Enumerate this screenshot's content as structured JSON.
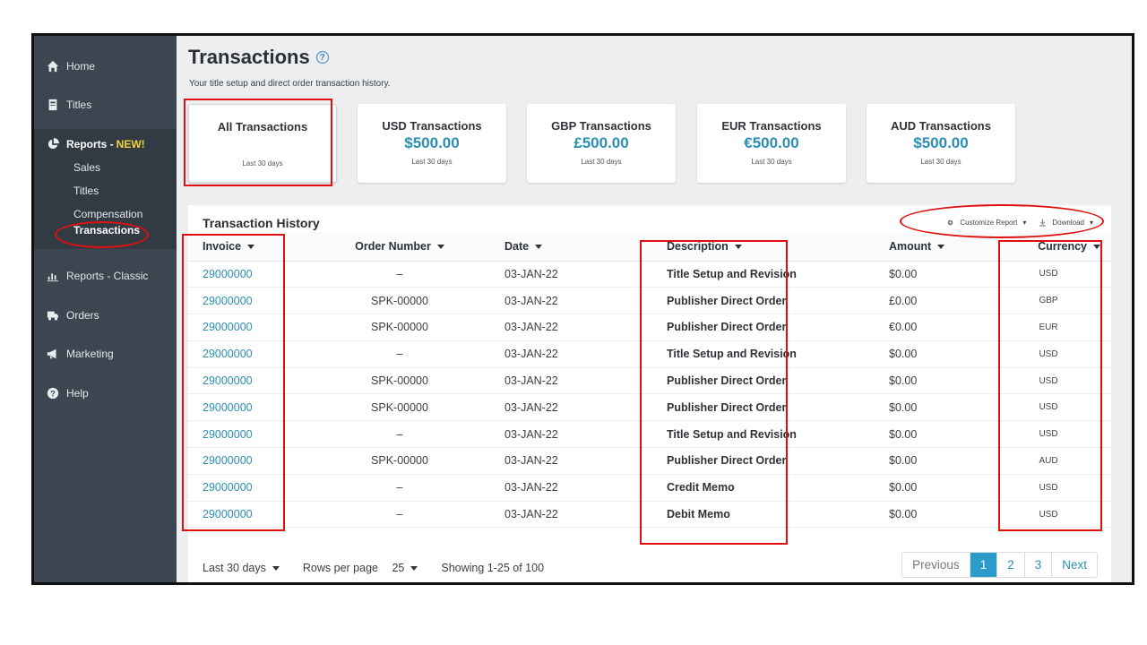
{
  "sidebar": {
    "home": "Home",
    "titles": "Titles",
    "reports_new": "Reports -",
    "new_badge": "NEW!",
    "sub_items": [
      "Sales",
      "Titles",
      "Compensation",
      "Transactions"
    ],
    "reports_classic": "Reports - Classic",
    "orders": "Orders",
    "marketing": "Marketing",
    "help": "Help"
  },
  "header": {
    "title": "Transactions",
    "help_icon": "?",
    "subtitle": "Your title setup and direct order transaction history."
  },
  "cards": [
    {
      "title": "All Transactions",
      "amount": "",
      "sub": "Last 30 days"
    },
    {
      "title": "USD Transactions",
      "amount": "$500.00",
      "sub": "Last 30 days"
    },
    {
      "title": "GBP Transactions",
      "amount": "£500.00",
      "sub": "Last 30 days"
    },
    {
      "title": "EUR Transactions",
      "amount": "€500.00",
      "sub": "Last 30 days"
    },
    {
      "title": "AUD Transactions",
      "amount": "$500.00",
      "sub": "Last 30 days"
    }
  ],
  "history": {
    "title": "Transaction History",
    "customize": "Customize Report",
    "download": "Download",
    "columns": [
      "Invoice",
      "Order Number",
      "Date",
      "Description",
      "Amount",
      "Currency"
    ],
    "rows": [
      [
        "29000000",
        "–",
        "03-JAN-22",
        "Title Setup and Revision",
        "$0.00",
        "USD"
      ],
      [
        "29000000",
        "SPK-00000",
        "03-JAN-22",
        "Publisher Direct Order",
        "£0.00",
        "GBP"
      ],
      [
        "29000000",
        "SPK-00000",
        "03-JAN-22",
        "Publisher Direct Order",
        "€0.00",
        "EUR"
      ],
      [
        "29000000",
        "–",
        "03-JAN-22",
        "Title Setup and Revision",
        "$0.00",
        "USD"
      ],
      [
        "29000000",
        "SPK-00000",
        "03-JAN-22",
        "Publisher Direct Order",
        "$0.00",
        "USD"
      ],
      [
        "29000000",
        "SPK-00000",
        "03-JAN-22",
        "Publisher Direct Order",
        "$0.00",
        "USD"
      ],
      [
        "29000000",
        "–",
        "03-JAN-22",
        "Title Setup and Revision",
        "$0.00",
        "USD"
      ],
      [
        "29000000",
        "SPK-00000",
        "03-JAN-22",
        "Publisher Direct Order",
        "$0.00",
        "AUD"
      ],
      [
        "29000000",
        "–",
        "03-JAN-22",
        "Credit Memo",
        "$0.00",
        "USD"
      ],
      [
        "29000000",
        "–",
        "03-JAN-22",
        "Debit Memo",
        "$0.00",
        "USD"
      ]
    ]
  },
  "footer": {
    "range": "Last 30 days",
    "rows_label": "Rows per page",
    "rows_value": "25",
    "showing": "Showing 1-25 of 100",
    "pages": [
      "Previous",
      "1",
      "2",
      "3",
      "Next"
    ]
  },
  "colors": {
    "accent": "#2b8fb4",
    "annotation": "#e01010",
    "sidebar": "#3c4650"
  }
}
